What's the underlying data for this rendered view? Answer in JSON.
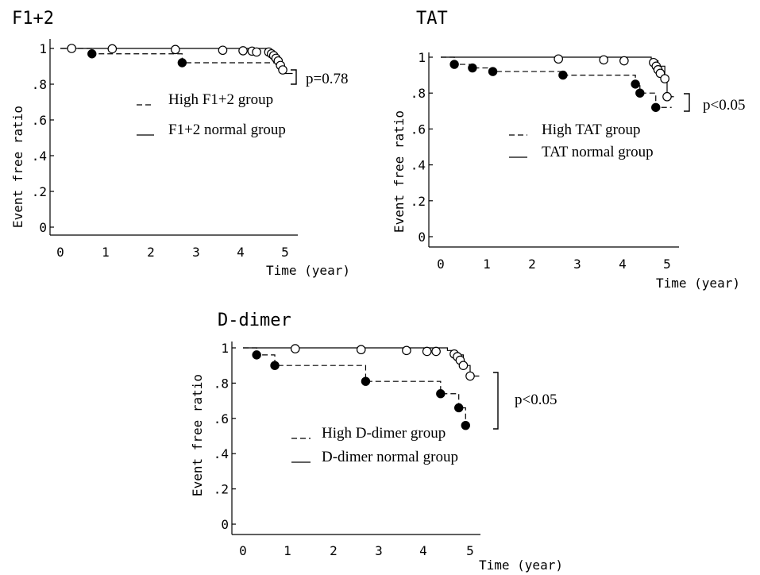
{
  "chart_data": [
    {
      "type": "line",
      "title": "F1+2",
      "xlabel": "Time (year)",
      "ylabel": "Event free ratio",
      "xlim": [
        0,
        5
      ],
      "ylim": [
        0,
        1
      ],
      "x_ticks": [
        "0",
        "1",
        "2",
        "3",
        "4",
        "5"
      ],
      "y_ticks": [
        "0",
        ".2",
        ".4",
        ".6",
        ".8",
        "1"
      ],
      "legend": [
        "High F1+2 group",
        "F1+2 normal group"
      ],
      "p_value": "p=0.78",
      "grid": false,
      "series": [
        {
          "name": "High F1+2 group",
          "style": "dashed",
          "marker": "filled",
          "steps": [
            [
              0,
              1.0
            ],
            [
              0.7,
              0.97
            ],
            [
              2.7,
              0.92
            ],
            [
              4.95,
              0.92
            ]
          ],
          "events": [
            [
              0.7,
              0.97
            ],
            [
              2.7,
              0.92
            ]
          ]
        },
        {
          "name": "F1+2 normal group",
          "style": "solid",
          "marker": "open",
          "steps": [
            [
              0,
              1.0
            ],
            [
              4.6,
              0.985
            ],
            [
              4.72,
              0.965
            ],
            [
              4.82,
              0.93
            ],
            [
              4.9,
              0.88
            ],
            [
              4.97,
              0.86
            ],
            [
              5.15,
              0.86
            ]
          ],
          "events": [
            [
              0.25,
              1.0
            ],
            [
              1.15,
              0.998
            ],
            [
              2.55,
              0.994
            ],
            [
              3.6,
              0.99
            ],
            [
              4.05,
              0.987
            ],
            [
              4.25,
              0.985
            ],
            [
              4.35,
              0.98
            ],
            [
              4.62,
              0.98
            ],
            [
              4.68,
              0.97
            ],
            [
              4.73,
              0.96
            ],
            [
              4.78,
              0.945
            ],
            [
              4.83,
              0.93
            ],
            [
              4.88,
              0.905
            ],
            [
              4.93,
              0.88
            ]
          ]
        }
      ]
    },
    {
      "type": "line",
      "title": "TAT",
      "xlabel": "Time (year)",
      "ylabel": "Event free ratio",
      "xlim": [
        0,
        5
      ],
      "ylim": [
        0,
        1
      ],
      "x_ticks": [
        "0",
        "1",
        "2",
        "3",
        "4",
        "5"
      ],
      "y_ticks": [
        "0",
        ".2",
        ".4",
        ".6",
        ".8",
        "1"
      ],
      "legend": [
        "High TAT group",
        "TAT normal group"
      ],
      "p_value": "p<0.05",
      "grid": false,
      "series": [
        {
          "name": "High TAT group",
          "style": "dashed",
          "marker": "filled",
          "steps": [
            [
              0,
              1.0
            ],
            [
              0.3,
              0.96
            ],
            [
              0.7,
              0.94
            ],
            [
              1.15,
              0.92
            ],
            [
              2.7,
              0.9
            ],
            [
              4.3,
              0.85
            ],
            [
              4.4,
              0.8
            ],
            [
              4.75,
              0.72
            ],
            [
              5.1,
              0.72
            ]
          ],
          "events": [
            [
              0.3,
              0.96
            ],
            [
              0.7,
              0.94
            ],
            [
              1.15,
              0.92
            ],
            [
              2.7,
              0.9
            ],
            [
              4.3,
              0.85
            ],
            [
              4.4,
              0.8
            ],
            [
              4.75,
              0.72
            ]
          ]
        },
        {
          "name": "TAT normal group",
          "style": "solid",
          "marker": "open",
          "steps": [
            [
              0,
              1.0
            ],
            [
              4.65,
              0.98
            ],
            [
              4.8,
              0.95
            ],
            [
              4.95,
              0.88
            ],
            [
              5.0,
              0.78
            ],
            [
              5.15,
              0.78
            ]
          ],
          "events": [
            [
              2.6,
              0.99
            ],
            [
              3.6,
              0.985
            ],
            [
              4.05,
              0.98
            ],
            [
              4.7,
              0.97
            ],
            [
              4.76,
              0.95
            ],
            [
              4.8,
              0.93
            ],
            [
              4.85,
              0.91
            ],
            [
              4.95,
              0.88
            ],
            [
              5.0,
              0.78
            ]
          ]
        }
      ]
    },
    {
      "type": "line",
      "title": "D-dimer",
      "xlabel": "Time (year)",
      "ylabel": "Event free ratio",
      "xlim": [
        0,
        5
      ],
      "ylim": [
        0,
        1
      ],
      "x_ticks": [
        "0",
        "1",
        "2",
        "3",
        "4",
        "5"
      ],
      "y_ticks": [
        "0",
        ".2",
        ".4",
        ".6",
        ".8",
        "1"
      ],
      "legend": [
        "High D-dimer group",
        "D-dimer normal group"
      ],
      "p_value": "p<0.05",
      "grid": false,
      "series": [
        {
          "name": "High D-dimer group",
          "style": "dashed",
          "marker": "filled",
          "steps": [
            [
              0,
              1.0
            ],
            [
              0.3,
              0.96
            ],
            [
              0.7,
              0.9
            ],
            [
              2.7,
              0.81
            ],
            [
              4.35,
              0.74
            ],
            [
              4.75,
              0.66
            ],
            [
              4.9,
              0.56
            ]
          ],
          "events": [
            [
              0.3,
              0.96
            ],
            [
              0.7,
              0.9
            ],
            [
              2.7,
              0.81
            ],
            [
              4.35,
              0.74
            ],
            [
              4.75,
              0.66
            ],
            [
              4.9,
              0.56
            ]
          ]
        },
        {
          "name": "D-dimer normal group",
          "style": "solid",
          "marker": "open",
          "steps": [
            [
              0,
              1.0
            ],
            [
              4.5,
              0.985
            ],
            [
              4.7,
              0.96
            ],
            [
              4.85,
              0.9
            ],
            [
              5.0,
              0.84
            ],
            [
              5.2,
              0.84
            ]
          ],
          "events": [
            [
              1.15,
              0.995
            ],
            [
              2.6,
              0.99
            ],
            [
              3.6,
              0.985
            ],
            [
              4.05,
              0.98
            ],
            [
              4.25,
              0.98
            ],
            [
              4.65,
              0.965
            ],
            [
              4.72,
              0.95
            ],
            [
              4.78,
              0.93
            ],
            [
              4.85,
              0.9
            ],
            [
              5.0,
              0.84
            ]
          ]
        }
      ]
    }
  ]
}
